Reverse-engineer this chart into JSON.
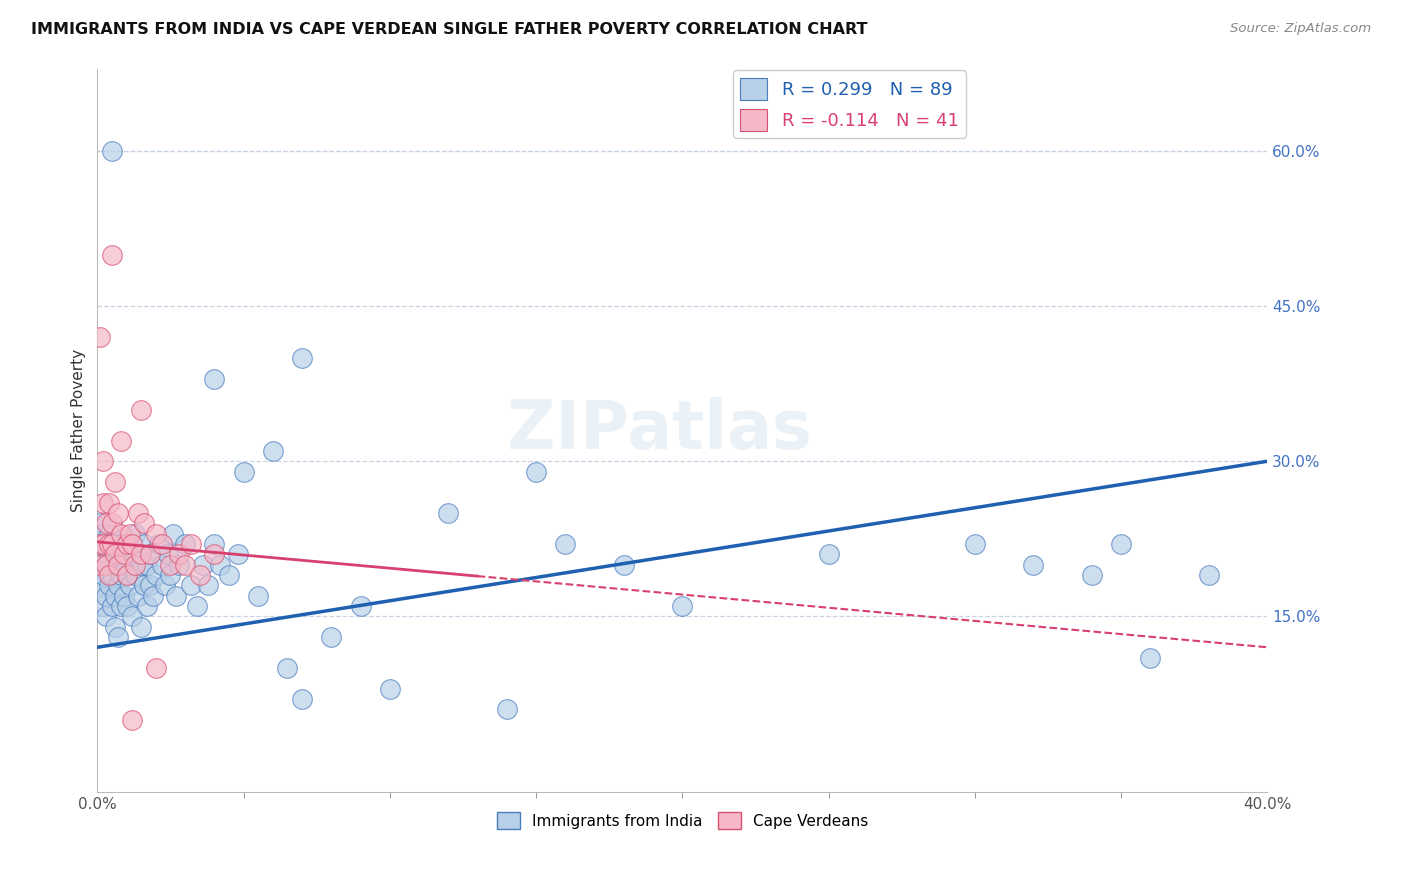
{
  "title": "IMMIGRANTS FROM INDIA VS CAPE VERDEAN SINGLE FATHER POVERTY CORRELATION CHART",
  "source": "Source: ZipAtlas.com",
  "ylabel": "Single Father Poverty",
  "right_yticks": [
    0.15,
    0.3,
    0.45,
    0.6
  ],
  "right_ytick_labels": [
    "15.0%",
    "30.0%",
    "45.0%",
    "60.0%"
  ],
  "xlim": [
    0.0,
    0.4
  ],
  "ylim": [
    -0.02,
    0.68
  ],
  "india_R": 0.299,
  "india_N": 89,
  "cape_R": -0.114,
  "cape_N": 41,
  "india_color": "#b8d0e8",
  "india_edge_color": "#4a7dbf",
  "cape_color": "#f5b8c8",
  "cape_edge_color": "#d85070",
  "india_line_color": "#2060b0",
  "cape_line_color": "#d84070",
  "background_color": "#ffffff",
  "grid_color": "#c8d4e4",
  "watermark": "ZIPatlas",
  "india_trend_x0": 0.0,
  "india_trend_y0": 0.12,
  "india_trend_x1": 0.4,
  "india_trend_y1": 0.3,
  "cape_trend_x0": 0.0,
  "cape_trend_y0": 0.222,
  "cape_trend_x1": 0.4,
  "cape_trend_y1": 0.12,
  "india_x": [
    0.001,
    0.001,
    0.001,
    0.001,
    0.002,
    0.002,
    0.002,
    0.002,
    0.003,
    0.003,
    0.003,
    0.003,
    0.004,
    0.004,
    0.004,
    0.005,
    0.005,
    0.005,
    0.006,
    0.006,
    0.006,
    0.007,
    0.007,
    0.007,
    0.008,
    0.008,
    0.008,
    0.009,
    0.009,
    0.01,
    0.01,
    0.01,
    0.011,
    0.012,
    0.012,
    0.013,
    0.013,
    0.014,
    0.015,
    0.015,
    0.016,
    0.016,
    0.017,
    0.017,
    0.018,
    0.018,
    0.019,
    0.02,
    0.021,
    0.022,
    0.023,
    0.024,
    0.025,
    0.026,
    0.027,
    0.028,
    0.03,
    0.032,
    0.034,
    0.036,
    0.038,
    0.04,
    0.042,
    0.045,
    0.048,
    0.05,
    0.055,
    0.06,
    0.065,
    0.07,
    0.08,
    0.09,
    0.1,
    0.12,
    0.14,
    0.16,
    0.18,
    0.2,
    0.25,
    0.3,
    0.32,
    0.34,
    0.36,
    0.005,
    0.04,
    0.07,
    0.15,
    0.35,
    0.38
  ],
  "india_y": [
    0.18,
    0.2,
    0.22,
    0.24,
    0.16,
    0.19,
    0.21,
    0.23,
    0.17,
    0.2,
    0.22,
    0.15,
    0.18,
    0.21,
    0.23,
    0.16,
    0.19,
    0.22,
    0.17,
    0.2,
    0.14,
    0.18,
    0.21,
    0.13,
    0.16,
    0.19,
    0.22,
    0.17,
    0.2,
    0.16,
    0.19,
    0.22,
    0.18,
    0.21,
    0.15,
    0.19,
    0.23,
    0.17,
    0.2,
    0.14,
    0.18,
    0.22,
    0.16,
    0.2,
    0.18,
    0.21,
    0.17,
    0.19,
    0.22,
    0.2,
    0.18,
    0.21,
    0.19,
    0.23,
    0.17,
    0.2,
    0.22,
    0.18,
    0.16,
    0.2,
    0.18,
    0.22,
    0.2,
    0.19,
    0.21,
    0.29,
    0.17,
    0.31,
    0.1,
    0.07,
    0.13,
    0.16,
    0.08,
    0.25,
    0.06,
    0.22,
    0.2,
    0.16,
    0.21,
    0.22,
    0.2,
    0.19,
    0.11,
    0.6,
    0.38,
    0.4,
    0.29,
    0.22,
    0.19
  ],
  "cape_x": [
    0.001,
    0.001,
    0.001,
    0.002,
    0.002,
    0.002,
    0.003,
    0.003,
    0.004,
    0.004,
    0.004,
    0.005,
    0.005,
    0.006,
    0.006,
    0.007,
    0.007,
    0.008,
    0.009,
    0.01,
    0.01,
    0.011,
    0.012,
    0.013,
    0.014,
    0.015,
    0.016,
    0.018,
    0.02,
    0.022,
    0.025,
    0.028,
    0.03,
    0.032,
    0.035,
    0.04,
    0.015,
    0.02,
    0.005,
    0.008,
    0.012
  ],
  "cape_y": [
    0.42,
    0.22,
    0.2,
    0.26,
    0.3,
    0.22,
    0.24,
    0.2,
    0.22,
    0.26,
    0.19,
    0.24,
    0.22,
    0.28,
    0.21,
    0.2,
    0.25,
    0.23,
    0.21,
    0.22,
    0.19,
    0.23,
    0.22,
    0.2,
    0.25,
    0.21,
    0.24,
    0.21,
    0.23,
    0.22,
    0.2,
    0.21,
    0.2,
    0.22,
    0.19,
    0.21,
    0.35,
    0.1,
    0.5,
    0.32,
    0.05
  ]
}
